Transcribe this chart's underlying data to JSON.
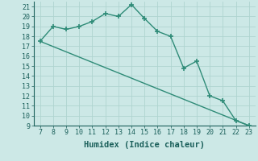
{
  "xlabel": "Humidex (Indice chaleur)",
  "curve_x": [
    7,
    8,
    9,
    10,
    11,
    12,
    13,
    14,
    15,
    16,
    17,
    18,
    19,
    20,
    21,
    22,
    23
  ],
  "curve_y": [
    17.5,
    19.0,
    18.7,
    19.0,
    19.5,
    20.3,
    20.0,
    21.2,
    19.8,
    18.5,
    18.0,
    14.8,
    15.5,
    12.0,
    11.5,
    9.5,
    9.0
  ],
  "line_x": [
    7,
    23
  ],
  "line_y": [
    17.5,
    9.0
  ],
  "color": "#2e8b77",
  "bg_color": "#cce8e6",
  "grid_color": "#afd4d0",
  "xlim": [
    6.5,
    23.5
  ],
  "ylim": [
    9,
    21.5
  ],
  "xticks": [
    7,
    8,
    9,
    10,
    11,
    12,
    13,
    14,
    15,
    16,
    17,
    18,
    19,
    20,
    21,
    22,
    23
  ],
  "yticks": [
    9,
    10,
    11,
    12,
    13,
    14,
    15,
    16,
    17,
    18,
    19,
    20,
    21
  ],
  "marker": "+",
  "markersize": 5,
  "linewidth": 1.0,
  "xlabel_fontsize": 7.5,
  "tick_fontsize": 6.0
}
